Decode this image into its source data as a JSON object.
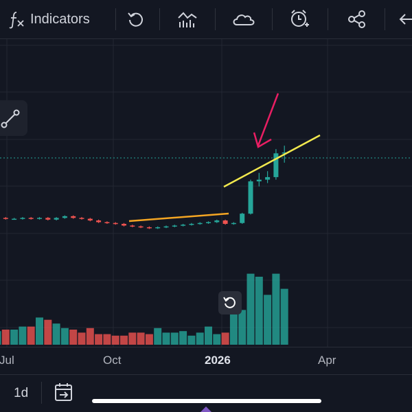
{
  "toolbar": {
    "indicators_label": "Indicators",
    "icons": [
      "function-icon",
      "undo-icon",
      "chart-type-icon",
      "cloud-icon",
      "alert-clock-icon",
      "share-icon",
      "back-arrow-icon"
    ]
  },
  "colors": {
    "up": "#26a69a",
    "down": "#ef5350",
    "trend1": "#f5a623",
    "trend2": "#f2e94e",
    "arrow": "#e91e63",
    "bg": "#131722"
  },
  "chart_data": {
    "type": "candlestick",
    "x_ticks": [
      "Jul",
      "Oct",
      "2026",
      "Apr"
    ],
    "candles": [
      {
        "o": 305,
        "c": 307,
        "h": 308,
        "l": 304
      },
      {
        "o": 307,
        "c": 306,
        "h": 308,
        "l": 305
      },
      {
        "o": 306,
        "c": 306,
        "h": 307,
        "l": 305
      },
      {
        "o": 306,
        "c": 307,
        "h": 308,
        "l": 305
      },
      {
        "o": 307,
        "c": 306,
        "h": 308,
        "l": 305
      },
      {
        "o": 306,
        "c": 307,
        "h": 308,
        "l": 305
      },
      {
        "o": 307,
        "c": 305,
        "h": 308,
        "l": 304
      },
      {
        "o": 305,
        "c": 307,
        "h": 308,
        "l": 304
      },
      {
        "o": 307,
        "c": 309,
        "h": 310,
        "l": 306
      },
      {
        "o": 309,
        "c": 307,
        "h": 310,
        "l": 306
      },
      {
        "o": 307,
        "c": 306,
        "h": 308,
        "l": 305
      },
      {
        "o": 306,
        "c": 304,
        "h": 307,
        "l": 303
      },
      {
        "o": 304,
        "c": 302,
        "h": 305,
        "l": 301
      },
      {
        "o": 302,
        "c": 301,
        "h": 303,
        "l": 300
      },
      {
        "o": 301,
        "c": 300,
        "h": 302,
        "l": 299
      },
      {
        "o": 300,
        "c": 298,
        "h": 301,
        "l": 297
      },
      {
        "o": 298,
        "c": 297,
        "h": 299,
        "l": 296
      },
      {
        "o": 297,
        "c": 296,
        "h": 298,
        "l": 295
      },
      {
        "o": 296,
        "c": 295,
        "h": 297,
        "l": 294
      },
      {
        "o": 295,
        "c": 296,
        "h": 297,
        "l": 294
      },
      {
        "o": 296,
        "c": 297,
        "h": 298,
        "l": 295
      },
      {
        "o": 297,
        "c": 298,
        "h": 299,
        "l": 296
      },
      {
        "o": 298,
        "c": 299,
        "h": 300,
        "l": 297
      },
      {
        "o": 299,
        "c": 300,
        "h": 301,
        "l": 298
      },
      {
        "o": 300,
        "c": 301,
        "h": 302,
        "l": 299
      },
      {
        "o": 301,
        "c": 302,
        "h": 303,
        "l": 300
      },
      {
        "o": 302,
        "c": 304,
        "h": 305,
        "l": 301
      },
      {
        "o": 304,
        "c": 300,
        "h": 305,
        "l": 299
      },
      {
        "o": 300,
        "c": 301,
        "h": 302,
        "l": 299
      },
      {
        "o": 301,
        "c": 312,
        "h": 313,
        "l": 300
      },
      {
        "o": 312,
        "c": 350,
        "h": 352,
        "l": 311
      },
      {
        "o": 350,
        "c": 352,
        "h": 360,
        "l": 344
      },
      {
        "o": 352,
        "c": 355,
        "h": 362,
        "l": 348
      },
      {
        "o": 355,
        "c": 383,
        "h": 388,
        "l": 352
      },
      {
        "o": 383,
        "c": 384,
        "h": 392,
        "l": 372
      }
    ],
    "volume": [
      18,
      20,
      20,
      24,
      24,
      36,
      33,
      28,
      22,
      20,
      16,
      22,
      14,
      14,
      12,
      12,
      16,
      16,
      14,
      22,
      16,
      16,
      18,
      12,
      16,
      24,
      14,
      16,
      44,
      46,
      94,
      90,
      66,
      94,
      74
    ]
  }
}
